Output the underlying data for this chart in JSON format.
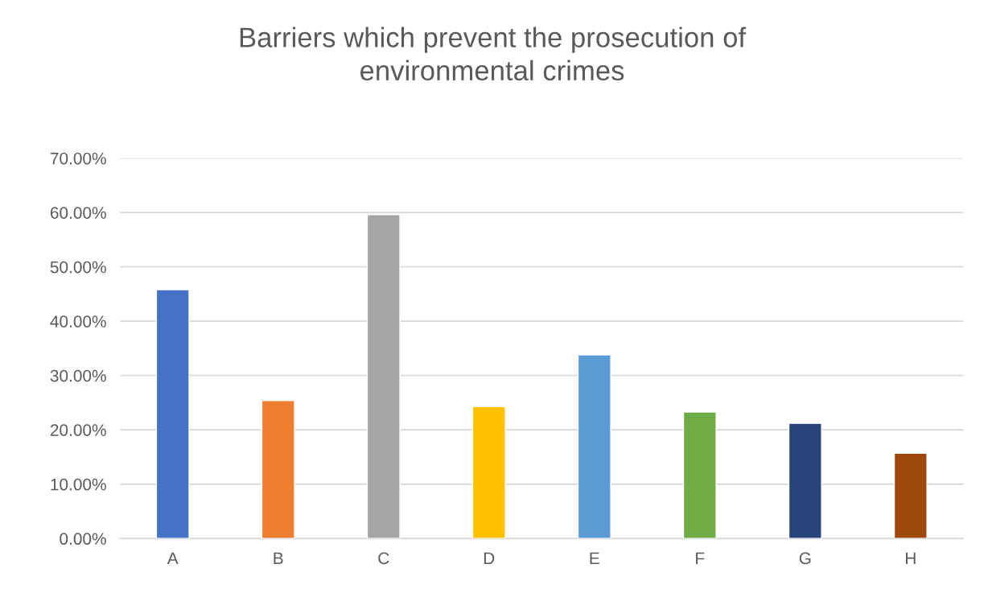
{
  "chart_data": {
    "type": "bar",
    "title": "Barriers which prevent the prosecution of\nenvironmental crimes",
    "categories": [
      "A",
      "B",
      "C",
      "D",
      "E",
      "F",
      "G",
      "H"
    ],
    "values": [
      45.8,
      25.4,
      59.6,
      24.3,
      33.8,
      23.3,
      21.2,
      15.7
    ],
    "colors": [
      "#4472c4",
      "#ed7d31",
      "#a5a5a5",
      "#ffc000",
      "#5b9bd5",
      "#70ad47",
      "#264478",
      "#9e480e"
    ],
    "ylim": [
      0,
      70
    ],
    "yticks": [
      {
        "value": 0,
        "label": "0.00%"
      },
      {
        "value": 10,
        "label": "10.00%"
      },
      {
        "value": 20,
        "label": "20.00%"
      },
      {
        "value": 30,
        "label": "30.00%"
      },
      {
        "value": 40,
        "label": "40.00%"
      },
      {
        "value": 50,
        "label": "50.00%"
      },
      {
        "value": 60,
        "label": "60.00%"
      },
      {
        "value": 70,
        "label": "70.00%"
      }
    ],
    "grid": "y",
    "legend": false
  }
}
